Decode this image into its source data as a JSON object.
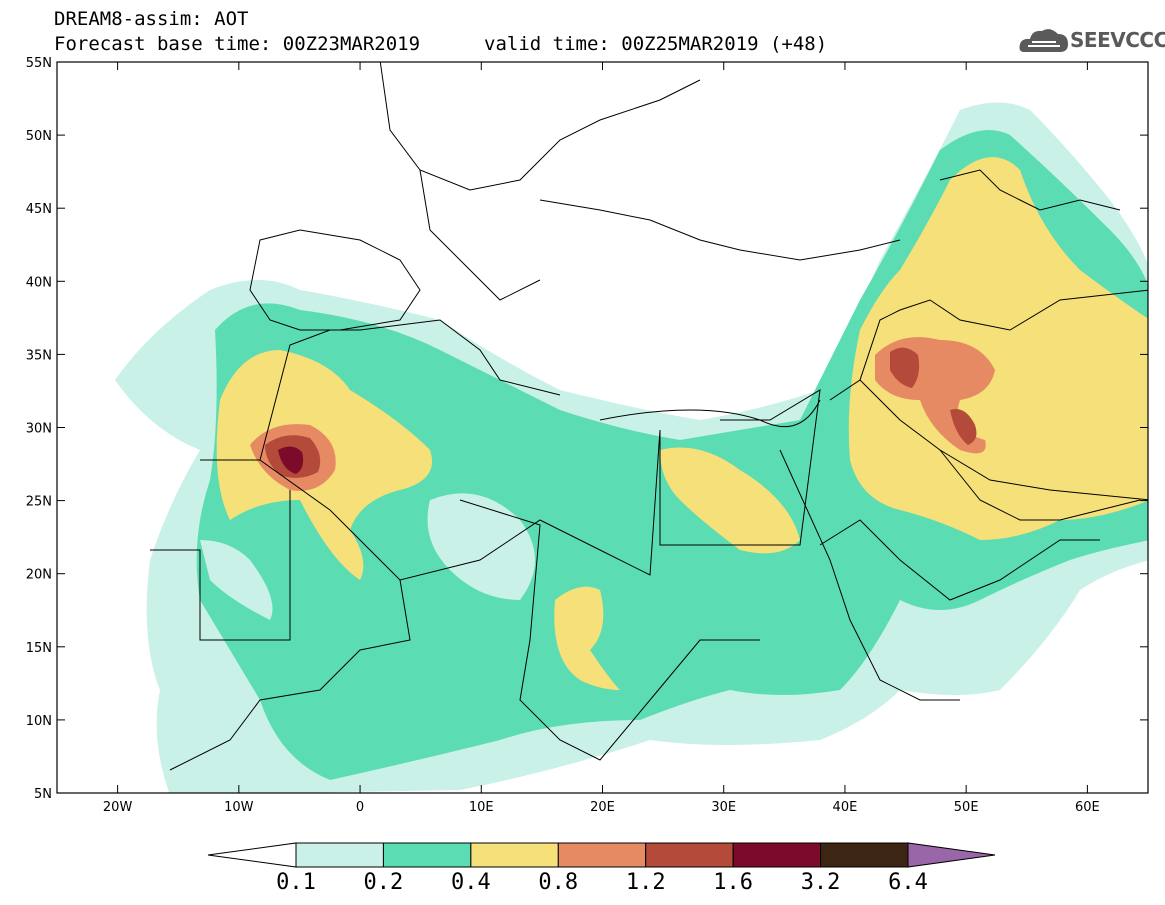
{
  "header": {
    "line1": "DREAM8-assim: AOT",
    "line2": "Forecast base time: 00Z23MAR2019",
    "line2b": "valid time: 00Z25MAR2019 (+48)",
    "logo_text": "SEEVCCC",
    "logo_icon": "cloud-icon"
  },
  "map": {
    "lat_labels": [
      "55N",
      "50N",
      "45N",
      "40N",
      "35N",
      "30N",
      "25N",
      "20N",
      "15N",
      "10N",
      "5N"
    ],
    "lon_labels": [
      "20W",
      "10W",
      "0",
      "10E",
      "20E",
      "30E",
      "40E",
      "50E",
      "60E"
    ],
    "lon_range": [
      -25,
      65
    ],
    "lat_range": [
      5,
      55
    ]
  },
  "colorbar": {
    "labels": [
      "0.1",
      "0.2",
      "0.4",
      "0.8",
      "1.2",
      "1.6",
      "3.2",
      "6.4"
    ],
    "colors": [
      "#ffffff",
      "#c9f1e8",
      "#5cdcb3",
      "#f6e07a",
      "#e68a63",
      "#b34a3a",
      "#7c0a2a",
      "#3d2513",
      "#9966a8"
    ]
  }
}
